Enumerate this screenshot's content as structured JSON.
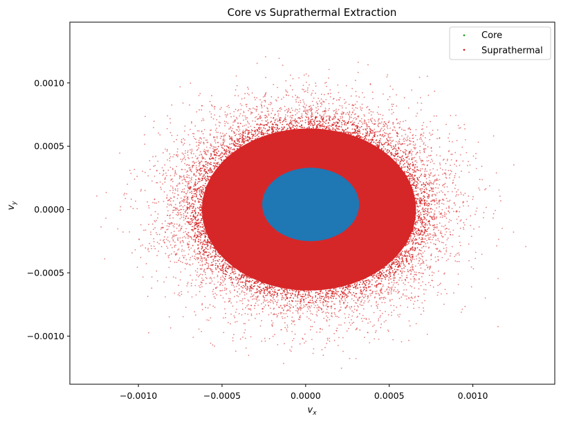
{
  "chart_data": {
    "type": "scatter",
    "title": "Core vs Suprathermal Extraction",
    "xlabel": {
      "base": "v",
      "sub": "x"
    },
    "ylabel": {
      "base": "v",
      "sub": "y"
    },
    "xlim": [
      -0.00141,
      0.00149
    ],
    "ylim": [
      -0.00138,
      0.00148
    ],
    "xticks": [
      -0.001,
      -0.0005,
      0.0,
      0.0005,
      0.001
    ],
    "xtick_labels": [
      "−0.0010",
      "−0.0005",
      "0.0000",
      "0.0005",
      "0.0010"
    ],
    "yticks": [
      -0.001,
      -0.0005,
      0.0,
      0.0005,
      0.001
    ],
    "ytick_labels": [
      "−0.0010",
      "−0.0005",
      "0.0000",
      "0.0005",
      "0.0010"
    ],
    "grid": false,
    "legend_position": "top-right",
    "series": [
      {
        "name": "Core",
        "color": "#1f77b4",
        "legend_color": "#2ca02c",
        "distribution": "dense filled ellipse",
        "center": [
          3e-05,
          4e-05
        ],
        "radius_x": 0.00029,
        "radius_y": 0.00029
      },
      {
        "name": "Suprathermal",
        "color": "#d62728",
        "distribution": "gaussian cloud around core",
        "center": [
          2e-05,
          0.0
        ],
        "sigma_x": 0.00032,
        "sigma_y": 0.00032,
        "dense_extent": 0.00064,
        "x_range": [
          -0.0013,
          0.00136
        ],
        "y_range": [
          -0.00127,
          0.00136
        ]
      }
    ]
  }
}
